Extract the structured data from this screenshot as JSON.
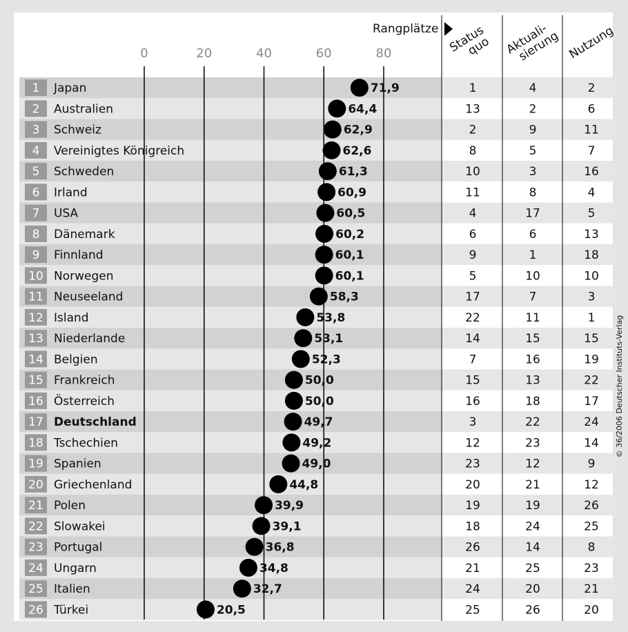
{
  "chart_data": {
    "type": "dot",
    "header": "Rangplätze",
    "source": "© 36/2006 Deutscher Instituts-Verlag",
    "highlight": "Deutschland",
    "color": "#000000",
    "ranks": [
      1,
      2,
      3,
      4,
      5,
      6,
      7,
      8,
      9,
      10,
      11,
      12,
      13,
      14,
      15,
      16,
      17,
      18,
      19,
      20,
      21,
      22,
      23,
      24,
      25,
      26
    ],
    "categories": [
      "Japan",
      "Australien",
      "Schweiz",
      "Vereinigtes Königreich",
      "Schweden",
      "Irland",
      "USA",
      "Dänemark",
      "Finnland",
      "Norwegen",
      "Neuseeland",
      "Island",
      "Niederlande",
      "Belgien",
      "Frankreich",
      "Österreich",
      "Deutschland",
      "Tschechien",
      "Spanien",
      "Griechenland",
      "Polen",
      "Slowakei",
      "Portugal",
      "Ungarn",
      "Italien",
      "Türkei"
    ],
    "values": [
      71.9,
      64.4,
      62.9,
      62.6,
      61.3,
      60.9,
      60.5,
      60.2,
      60.1,
      60.1,
      58.3,
      53.8,
      53.1,
      52.3,
      50.0,
      50.0,
      49.7,
      49.2,
      49.0,
      44.8,
      39.9,
      39.1,
      36.8,
      34.8,
      32.7,
      20.5
    ],
    "value_labels": [
      "71,9",
      "64,4",
      "62,9",
      "62,6",
      "61,3",
      "60,9",
      "60,5",
      "60,2",
      "60,1",
      "60,1",
      "58,3",
      "53,8",
      "53,1",
      "52,3",
      "50,0",
      "50,0",
      "49,7",
      "49,2",
      "49,0",
      "44,8",
      "39,9",
      "39,1",
      "36,8",
      "34,8",
      "32,7",
      "20,5"
    ],
    "xlim": [
      0,
      80
    ],
    "xticks": [
      0,
      20,
      40,
      60,
      80
    ],
    "columns": [
      {
        "name": [
          "Status",
          "quo"
        ],
        "values": [
          1,
          13,
          2,
          8,
          10,
          11,
          4,
          6,
          9,
          5,
          17,
          22,
          14,
          7,
          15,
          16,
          3,
          12,
          23,
          20,
          19,
          18,
          26,
          21,
          24,
          25
        ]
      },
      {
        "name": [
          "Aktuali-",
          "sierung"
        ],
        "values": [
          4,
          2,
          9,
          5,
          3,
          8,
          17,
          6,
          1,
          10,
          7,
          11,
          15,
          16,
          13,
          18,
          22,
          23,
          12,
          21,
          19,
          24,
          14,
          25,
          20,
          26
        ]
      },
      {
        "name": [
          "Nutzung"
        ],
        "values": [
          2,
          6,
          11,
          7,
          16,
          4,
          5,
          13,
          18,
          10,
          3,
          1,
          15,
          19,
          22,
          17,
          24,
          14,
          9,
          12,
          26,
          25,
          8,
          23,
          21,
          20
        ]
      }
    ]
  }
}
